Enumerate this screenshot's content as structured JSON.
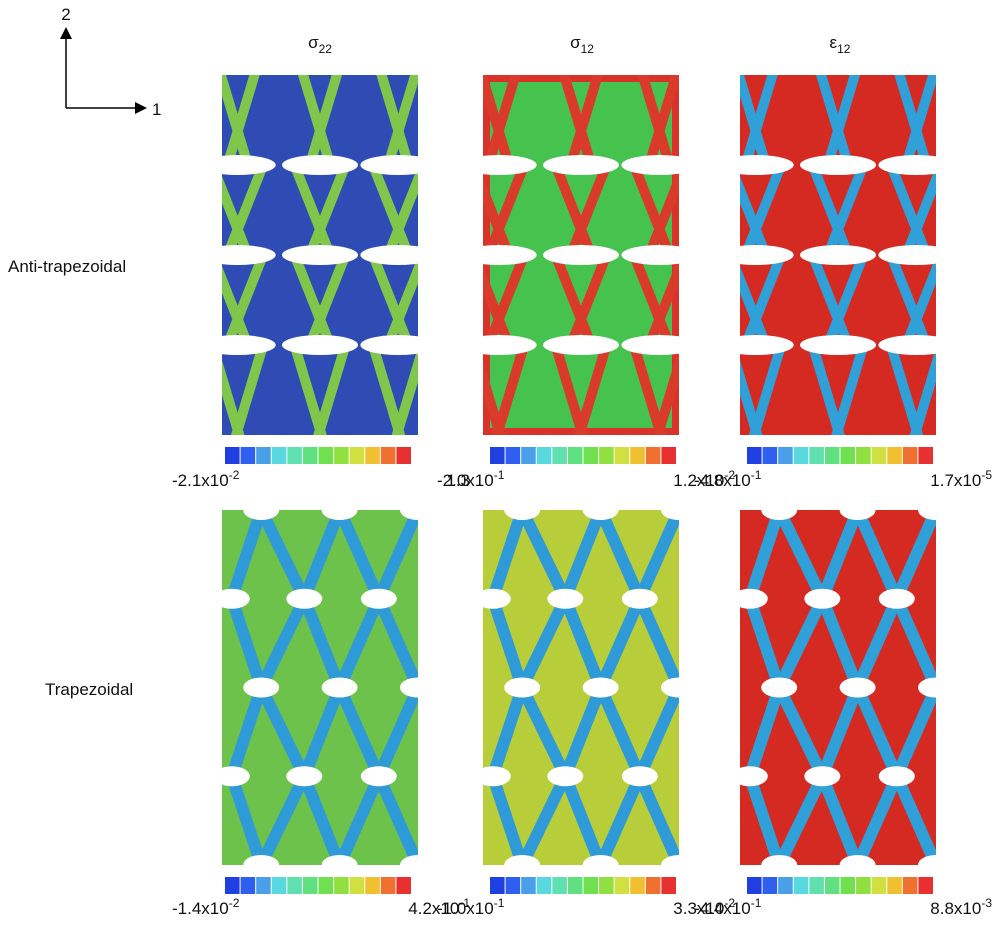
{
  "axes": {
    "vertical": "2",
    "horizontal": "1"
  },
  "columns": [
    {
      "symbol": "σ",
      "subscript": "22"
    },
    {
      "symbol": "σ",
      "subscript": "12"
    },
    {
      "symbol": "ε",
      "subscript": "12"
    }
  ],
  "rows": [
    {
      "label": "Anti-trapezoidal",
      "scales": [
        {
          "min": {
            "base": "-2.1x10",
            "exponent": "-2"
          },
          "max": {
            "base": "1.3"
          }
        },
        {
          "min": {
            "base": "-2.0x10",
            "exponent": "-1"
          },
          "max": {
            "base": "1.2x10",
            "exponent": "-2"
          }
        },
        {
          "min": {
            "base": "-4.8x10",
            "exponent": "-1"
          },
          "max": {
            "base": "1.7x10",
            "exponent": "-5"
          }
        }
      ]
    },
    {
      "label": "Trapezoidal",
      "scales": [
        {
          "min": {
            "base": "-1.4x10",
            "exponent": "-2"
          },
          "max": {
            "base": "4.2x10",
            "exponent": "-1"
          }
        },
        {
          "min": {
            "base": "-1.0x10",
            "exponent": "-1"
          },
          "max": {
            "base": "3.3x10",
            "exponent": "-2"
          }
        },
        {
          "min": {
            "base": "-4.4x10",
            "exponent": "-1"
          },
          "max": {
            "base": "8.8x10",
            "exponent": "-3"
          }
        }
      ]
    }
  ]
}
